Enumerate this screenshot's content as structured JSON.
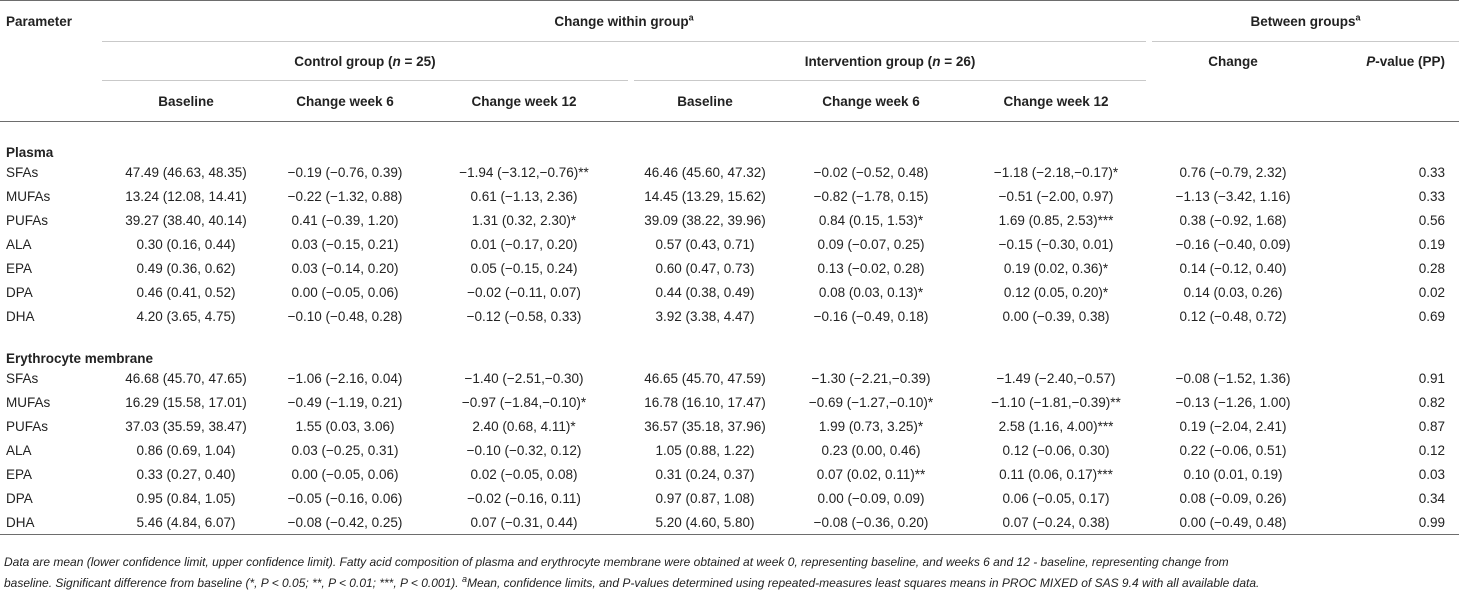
{
  "header": {
    "parameter": "Parameter",
    "within": "Change within group",
    "within_sup": "a",
    "between": "Between groups",
    "between_sup": "a",
    "control": "Control group (",
    "control_n": "n",
    "control_eq": " = 25)",
    "intervention": "Intervention group (",
    "intervention_n": "n",
    "intervention_eq": " = 26)",
    "baseline": "Baseline",
    "week6": "Change week 6",
    "week12": "Change week 12",
    "change": "Change",
    "pvalue_p": "P",
    "pvalue_rest": "-value (PP)"
  },
  "sections": [
    {
      "title": "Plasma",
      "rows": [
        {
          "param": "SFAs",
          "cb": "47.49 (46.63, 48.35)",
          "c6": "−0.19 (−0.76, 0.39)",
          "c12": "−1.94 (−3.12,−0.76)**",
          "ib": "46.46 (45.60, 47.32)",
          "i6": "−0.02 (−0.52, 0.48)",
          "i12": "−1.18 (−2.18,−0.17)*",
          "ch": "0.76 (−0.79, 2.32)",
          "p": "0.33"
        },
        {
          "param": "MUFAs",
          "cb": "13.24 (12.08, 14.41)",
          "c6": "−0.22 (−1.32, 0.88)",
          "c12": "0.61 (−1.13, 2.36)",
          "ib": "14.45 (13.29, 15.62)",
          "i6": "−0.82 (−1.78, 0.15)",
          "i12": "−0.51 (−2.00, 0.97)",
          "ch": "−1.13 (−3.42, 1.16)",
          "p": "0.33"
        },
        {
          "param": "PUFAs",
          "cb": "39.27 (38.40, 40.14)",
          "c6": "0.41 (−0.39, 1.20)",
          "c12": "1.31 (0.32, 2.30)*",
          "ib": "39.09 (38.22, 39.96)",
          "i6": "0.84 (0.15, 1.53)*",
          "i12": "1.69 (0.85, 2.53)***",
          "ch": "0.38 (−0.92, 1.68)",
          "p": "0.56"
        },
        {
          "param": "ALA",
          "cb": "0.30 (0.16, 0.44)",
          "c6": "0.03 (−0.15, 0.21)",
          "c12": "0.01 (−0.17, 0.20)",
          "ib": "0.57 (0.43, 0.71)",
          "i6": "0.09 (−0.07, 0.25)",
          "i12": "−0.15 (−0.30, 0.01)",
          "ch": "−0.16 (−0.40, 0.09)",
          "p": "0.19"
        },
        {
          "param": "EPA",
          "cb": "0.49 (0.36, 0.62)",
          "c6": "0.03 (−0.14, 0.20)",
          "c12": "0.05 (−0.15, 0.24)",
          "ib": "0.60 (0.47, 0.73)",
          "i6": "0.13 (−0.02, 0.28)",
          "i12": "0.19 (0.02, 0.36)*",
          "ch": "0.14 (−0.12, 0.40)",
          "p": "0.28"
        },
        {
          "param": "DPA",
          "cb": "0.46 (0.41, 0.52)",
          "c6": "0.00 (−0.05, 0.06)",
          "c12": "−0.02 (−0.11, 0.07)",
          "ib": "0.44 (0.38, 0.49)",
          "i6": "0.08 (0.03, 0.13)*",
          "i12": "0.12 (0.05, 0.20)*",
          "ch": "0.14 (0.03, 0.26)",
          "p": "0.02"
        },
        {
          "param": "DHA",
          "cb": "4.20 (3.65, 4.75)",
          "c6": "−0.10 (−0.48, 0.28)",
          "c12": "−0.12 (−0.58, 0.33)",
          "ib": "3.92 (3.38, 4.47)",
          "i6": "−0.16 (−0.49, 0.18)",
          "i12": "0.00 (−0.39, 0.38)",
          "ch": "0.12 (−0.48, 0.72)",
          "p": "0.69"
        }
      ]
    },
    {
      "title": "Erythrocyte membrane",
      "rows": [
        {
          "param": "SFAs",
          "cb": "46.68 (45.70, 47.65)",
          "c6": "−1.06 (−2.16, 0.04)",
          "c12": "−1.40 (−2.51,−0.30)",
          "ib": "46.65 (45.70, 47.59)",
          "i6": "−1.30 (−2.21,−0.39)",
          "i12": "−1.49 (−2.40,−0.57)",
          "ch": "−0.08 (−1.52, 1.36)",
          "p": "0.91"
        },
        {
          "param": "MUFAs",
          "cb": "16.29 (15.58, 17.01)",
          "c6": "−0.49 (−1.19, 0.21)",
          "c12": "−0.97 (−1.84,−0.10)*",
          "ib": "16.78 (16.10, 17.47)",
          "i6": "−0.69 (−1.27,−0.10)*",
          "i12": "−1.10 (−1.81,−0.39)**",
          "ch": "−0.13 (−1.26, 1.00)",
          "p": "0.82"
        },
        {
          "param": "PUFAs",
          "cb": "37.03 (35.59, 38.47)",
          "c6": "1.55 (0.03, 3.06)",
          "c12": "2.40 (0.68, 4.11)*",
          "ib": "36.57 (35.18, 37.96)",
          "i6": "1.99 (0.73, 3.25)*",
          "i12": "2.58 (1.16, 4.00)***",
          "ch": "0.19 (−2.04, 2.41)",
          "p": "0.87"
        },
        {
          "param": "ALA",
          "cb": "0.86 (0.69, 1.04)",
          "c6": "0.03 (−0.25, 0.31)",
          "c12": "−0.10 (−0.32, 0.12)",
          "ib": "1.05 (0.88, 1.22)",
          "i6": "0.23 (0.00, 0.46)",
          "i12": "0.12 (−0.06, 0.30)",
          "ch": "0.22 (−0.06, 0.51)",
          "p": "0.12"
        },
        {
          "param": "EPA",
          "cb": "0.33 (0.27, 0.40)",
          "c6": "0.00 (−0.05, 0.06)",
          "c12": "0.02 (−0.05, 0.08)",
          "ib": "0.31 (0.24, 0.37)",
          "i6": "0.07 (0.02, 0.11)**",
          "i12": "0.11 (0.06, 0.17)***",
          "ch": "0.10 (0.01, 0.19)",
          "p": "0.03"
        },
        {
          "param": "DPA",
          "cb": "0.95 (0.84, 1.05)",
          "c6": "−0.05 (−0.16, 0.06)",
          "c12": "−0.02 (−0.16, 0.11)",
          "ib": "0.97 (0.87, 1.08)",
          "i6": "0.00 (−0.09, 0.09)",
          "i12": "0.06 (−0.05, 0.17)",
          "ch": "0.08 (−0.09, 0.26)",
          "p": "0.34"
        },
        {
          "param": "DHA",
          "cb": "5.46 (4.84, 6.07)",
          "c6": "−0.08 (−0.42, 0.25)",
          "c12": "0.07 (−0.31, 0.44)",
          "ib": "5.20 (4.60, 5.80)",
          "i6": "−0.08 (−0.36, 0.20)",
          "i12": "0.07 (−0.24, 0.38)",
          "ch": "0.00 (−0.49, 0.48)",
          "p": "0.99"
        }
      ]
    }
  ],
  "footnote": {
    "line1": "Data are mean (lower confidence limit, upper confidence limit). Fatty acid composition of plasma and erythrocyte membrane were obtained at week 0, representing baseline, and weeks 6 and 12 - baseline, representing change from",
    "line2a": "baseline. Significant difference from baseline (*, P < 0.05; **, P < 0.01; ***, P < 0.001). ",
    "line2_sup": "a",
    "line2b": "Mean, confidence limits, and P-values determined using repeated-measures least squares means in PROC MIXED of SAS 9.4 with all available data."
  }
}
